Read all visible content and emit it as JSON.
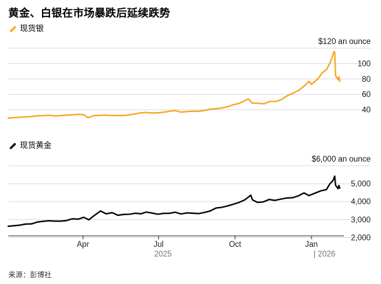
{
  "title": "黄金、白银在市场暴跌后延续跌势",
  "source": "来源：彭博社",
  "colors": {
    "silver": "#f5a623",
    "gold": "#000000",
    "grid": "#dcdcdc"
  },
  "chart_data": [
    {
      "type": "line",
      "name": "现货银",
      "unit_label": "$120 an ounce",
      "yticks": [
        40,
        60,
        80,
        100
      ],
      "ylim": [
        20,
        120
      ],
      "grid": true,
      "legend": "top-left",
      "series": [
        {
          "name": "现货银",
          "points": [
            [
              "2025-01-01",
              29.0
            ],
            [
              "2025-01-08",
              29.8
            ],
            [
              "2025-01-15",
              30.3
            ],
            [
              "2025-01-22",
              30.6
            ],
            [
              "2025-01-29",
              31.1
            ],
            [
              "2025-02-05",
              32.2
            ],
            [
              "2025-02-12",
              32.3
            ],
            [
              "2025-02-19",
              32.9
            ],
            [
              "2025-02-26",
              31.9
            ],
            [
              "2025-03-05",
              32.4
            ],
            [
              "2025-03-12",
              32.9
            ],
            [
              "2025-03-19",
              33.4
            ],
            [
              "2025-03-26",
              34.0
            ],
            [
              "2025-04-02",
              33.6
            ],
            [
              "2025-04-07",
              29.6
            ],
            [
              "2025-04-14",
              32.4
            ],
            [
              "2025-04-21",
              32.7
            ],
            [
              "2025-04-28",
              33.0
            ],
            [
              "2025-05-05",
              32.5
            ],
            [
              "2025-05-12",
              32.6
            ],
            [
              "2025-05-19",
              32.4
            ],
            [
              "2025-05-26",
              33.2
            ],
            [
              "2025-06-02",
              34.5
            ],
            [
              "2025-06-09",
              36.0
            ],
            [
              "2025-06-16",
              36.4
            ],
            [
              "2025-06-23",
              35.8
            ],
            [
              "2025-06-30",
              36.0
            ],
            [
              "2025-07-07",
              36.8
            ],
            [
              "2025-07-14",
              38.0
            ],
            [
              "2025-07-21",
              38.8
            ],
            [
              "2025-07-28",
              37.0
            ],
            [
              "2025-08-04",
              37.6
            ],
            [
              "2025-08-11",
              38.1
            ],
            [
              "2025-08-18",
              38.0
            ],
            [
              "2025-08-25",
              39.0
            ],
            [
              "2025-09-01",
              40.7
            ],
            [
              "2025-09-08",
              41.3
            ],
            [
              "2025-09-15",
              42.3
            ],
            [
              "2025-09-22",
              44.0
            ],
            [
              "2025-09-29",
              46.5
            ],
            [
              "2025-10-06",
              48.3
            ],
            [
              "2025-10-13",
              52.0
            ],
            [
              "2025-10-17",
              54.0
            ],
            [
              "2025-10-22",
              48.6
            ],
            [
              "2025-10-29",
              48.4
            ],
            [
              "2025-11-05",
              47.8
            ],
            [
              "2025-11-12",
              50.8
            ],
            [
              "2025-11-19",
              50.8
            ],
            [
              "2025-11-26",
              53.3
            ],
            [
              "2025-12-03",
              58.3
            ],
            [
              "2025-12-10",
              61.5
            ],
            [
              "2025-12-17",
              65.5
            ],
            [
              "2025-12-24",
              71.5
            ],
            [
              "2025-12-29",
              77.0
            ],
            [
              "2026-01-01",
              73.0
            ],
            [
              "2026-01-05",
              76.5
            ],
            [
              "2026-01-09",
              80.5
            ],
            [
              "2026-01-14",
              88.0
            ],
            [
              "2026-01-19",
              92.0
            ],
            [
              "2026-01-23",
              100.0
            ],
            [
              "2026-01-26",
              108.5
            ],
            [
              "2026-01-28",
              115.5
            ],
            [
              "2026-01-29",
              114.5
            ],
            [
              "2026-01-30",
              84.5
            ],
            [
              "2026-02-02",
              79.0
            ],
            [
              "2026-02-03",
              83.0
            ],
            [
              "2026-02-04",
              77.0
            ]
          ]
        }
      ]
    },
    {
      "type": "line",
      "name": "现货黄金",
      "unit_label": "$6,000 an ounce",
      "yticks": [
        2000,
        3000,
        4000,
        5000
      ],
      "yticklabels": [
        "2,000",
        "3,000",
        "4,000",
        "5,000"
      ],
      "ylim": [
        1750,
        6000
      ],
      "grid": true,
      "legend": "top-left",
      "xticks": [
        "2025-04-01",
        "2025-07-01",
        "2025-10-01",
        "2026-01-01"
      ],
      "xticklabels": [
        "Apr",
        "Jul",
        "Oct",
        "Jan"
      ],
      "year_labels": [
        "2025",
        "| 2026"
      ],
      "series": [
        {
          "name": "现货黄金",
          "points": [
            [
              "2025-01-01",
              2625
            ],
            [
              "2025-01-08",
              2660
            ],
            [
              "2025-01-15",
              2690
            ],
            [
              "2025-01-22",
              2755
            ],
            [
              "2025-01-29",
              2760
            ],
            [
              "2025-02-05",
              2865
            ],
            [
              "2025-02-12",
              2905
            ],
            [
              "2025-02-19",
              2935
            ],
            [
              "2025-02-26",
              2915
            ],
            [
              "2025-03-05",
              2915
            ],
            [
              "2025-03-12",
              2945
            ],
            [
              "2025-03-19",
              3045
            ],
            [
              "2025-03-26",
              3025
            ],
            [
              "2025-04-02",
              3130
            ],
            [
              "2025-04-08",
              2985
            ],
            [
              "2025-04-14",
              3210
            ],
            [
              "2025-04-22",
              3480
            ],
            [
              "2025-04-29",
              3320
            ],
            [
              "2025-05-06",
              3390
            ],
            [
              "2025-05-13",
              3240
            ],
            [
              "2025-05-20",
              3290
            ],
            [
              "2025-05-27",
              3300
            ],
            [
              "2025-06-03",
              3355
            ],
            [
              "2025-06-10",
              3325
            ],
            [
              "2025-06-16",
              3420
            ],
            [
              "2025-06-23",
              3365
            ],
            [
              "2025-06-30",
              3300
            ],
            [
              "2025-07-07",
              3345
            ],
            [
              "2025-07-14",
              3350
            ],
            [
              "2025-07-21",
              3410
            ],
            [
              "2025-07-28",
              3315
            ],
            [
              "2025-08-04",
              3375
            ],
            [
              "2025-08-11",
              3355
            ],
            [
              "2025-08-18",
              3335
            ],
            [
              "2025-08-25",
              3395
            ],
            [
              "2025-09-01",
              3480
            ],
            [
              "2025-09-08",
              3640
            ],
            [
              "2025-09-15",
              3685
            ],
            [
              "2025-09-22",
              3760
            ],
            [
              "2025-09-29",
              3855
            ],
            [
              "2025-10-06",
              3960
            ],
            [
              "2025-10-13",
              4110
            ],
            [
              "2025-10-20",
              4360
            ],
            [
              "2025-10-22",
              4100
            ],
            [
              "2025-10-28",
              3960
            ],
            [
              "2025-11-04",
              3985
            ],
            [
              "2025-11-11",
              4120
            ],
            [
              "2025-11-18",
              4070
            ],
            [
              "2025-11-25",
              4140
            ],
            [
              "2025-12-02",
              4205
            ],
            [
              "2025-12-09",
              4215
            ],
            [
              "2025-12-16",
              4320
            ],
            [
              "2025-12-23",
              4485
            ],
            [
              "2025-12-29",
              4340
            ],
            [
              "2026-01-05",
              4470
            ],
            [
              "2026-01-12",
              4600
            ],
            [
              "2026-01-19",
              4670
            ],
            [
              "2026-01-23",
              4980
            ],
            [
              "2026-01-27",
              5180
            ],
            [
              "2026-01-29",
              5420
            ],
            [
              "2026-01-30",
              4920
            ],
            [
              "2026-02-02",
              4720
            ],
            [
              "2026-02-03",
              4900
            ],
            [
              "2026-02-04",
              4750
            ]
          ]
        }
      ]
    }
  ]
}
